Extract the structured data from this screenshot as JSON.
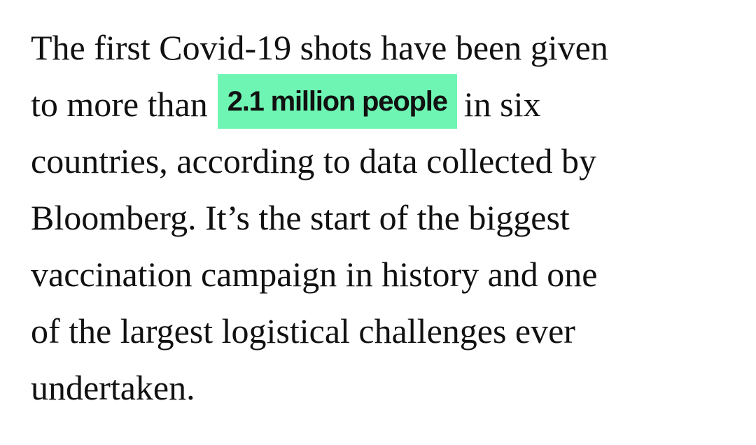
{
  "paragraph": {
    "line_0": "The first Covid-19 shots have been given",
    "line_1": {
      "before": "to more than",
      "highlight": "2.1 million people",
      "after": "in six"
    },
    "line_2": "countries, according to data collected by",
    "line_3": "Bloomberg. It’s the start of the biggest",
    "line_4": "vaccination campaign in history and one",
    "line_5": "of the largest logistical challenges ever",
    "line_6": "undertaken."
  }
}
